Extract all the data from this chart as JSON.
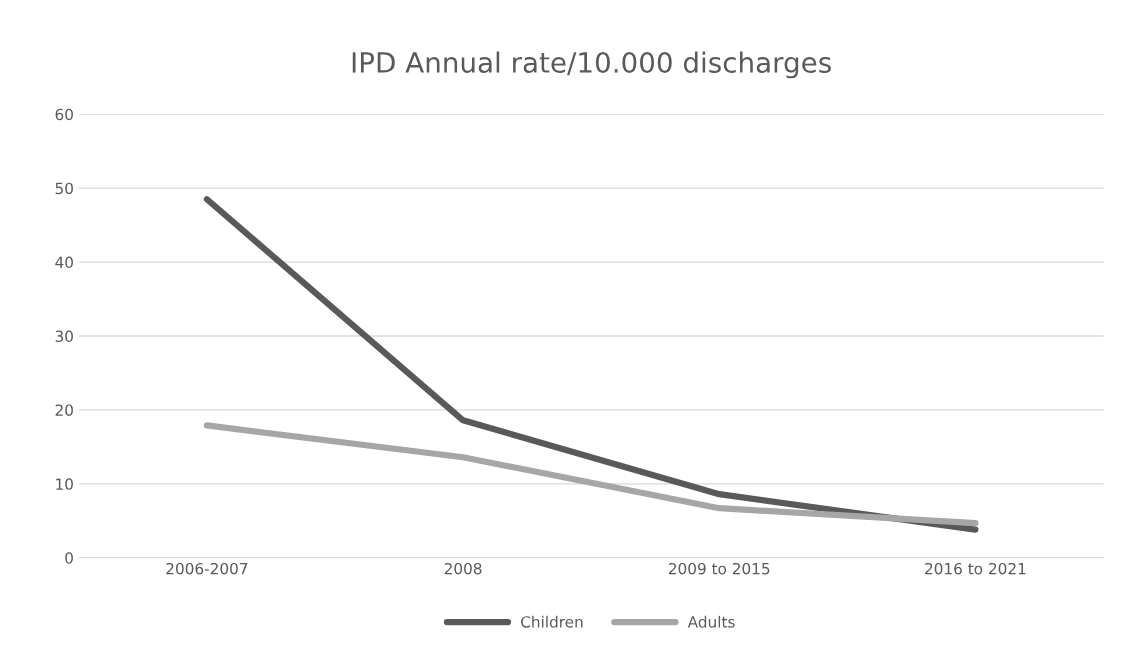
{
  "chart_data": {
    "type": "line",
    "title": "IPD Annual rate/10.000 discharges",
    "categories": [
      "2006-2007",
      "2008",
      "2009 to 2015",
      "2016 to 2021"
    ],
    "series": [
      {
        "name": "Children",
        "color": "#595959",
        "values": [
          48.5,
          18.6,
          8.6,
          3.8
        ]
      },
      {
        "name": "Adults",
        "color": "#a6a6a6",
        "values": [
          17.9,
          13.6,
          6.7,
          4.7
        ]
      }
    ],
    "ylim": [
      0,
      60
    ],
    "yticks": [
      0,
      10,
      20,
      30,
      40,
      50,
      60
    ],
    "grid": "y",
    "legend": "bottom",
    "marker": "none",
    "line_style": "solid"
  }
}
